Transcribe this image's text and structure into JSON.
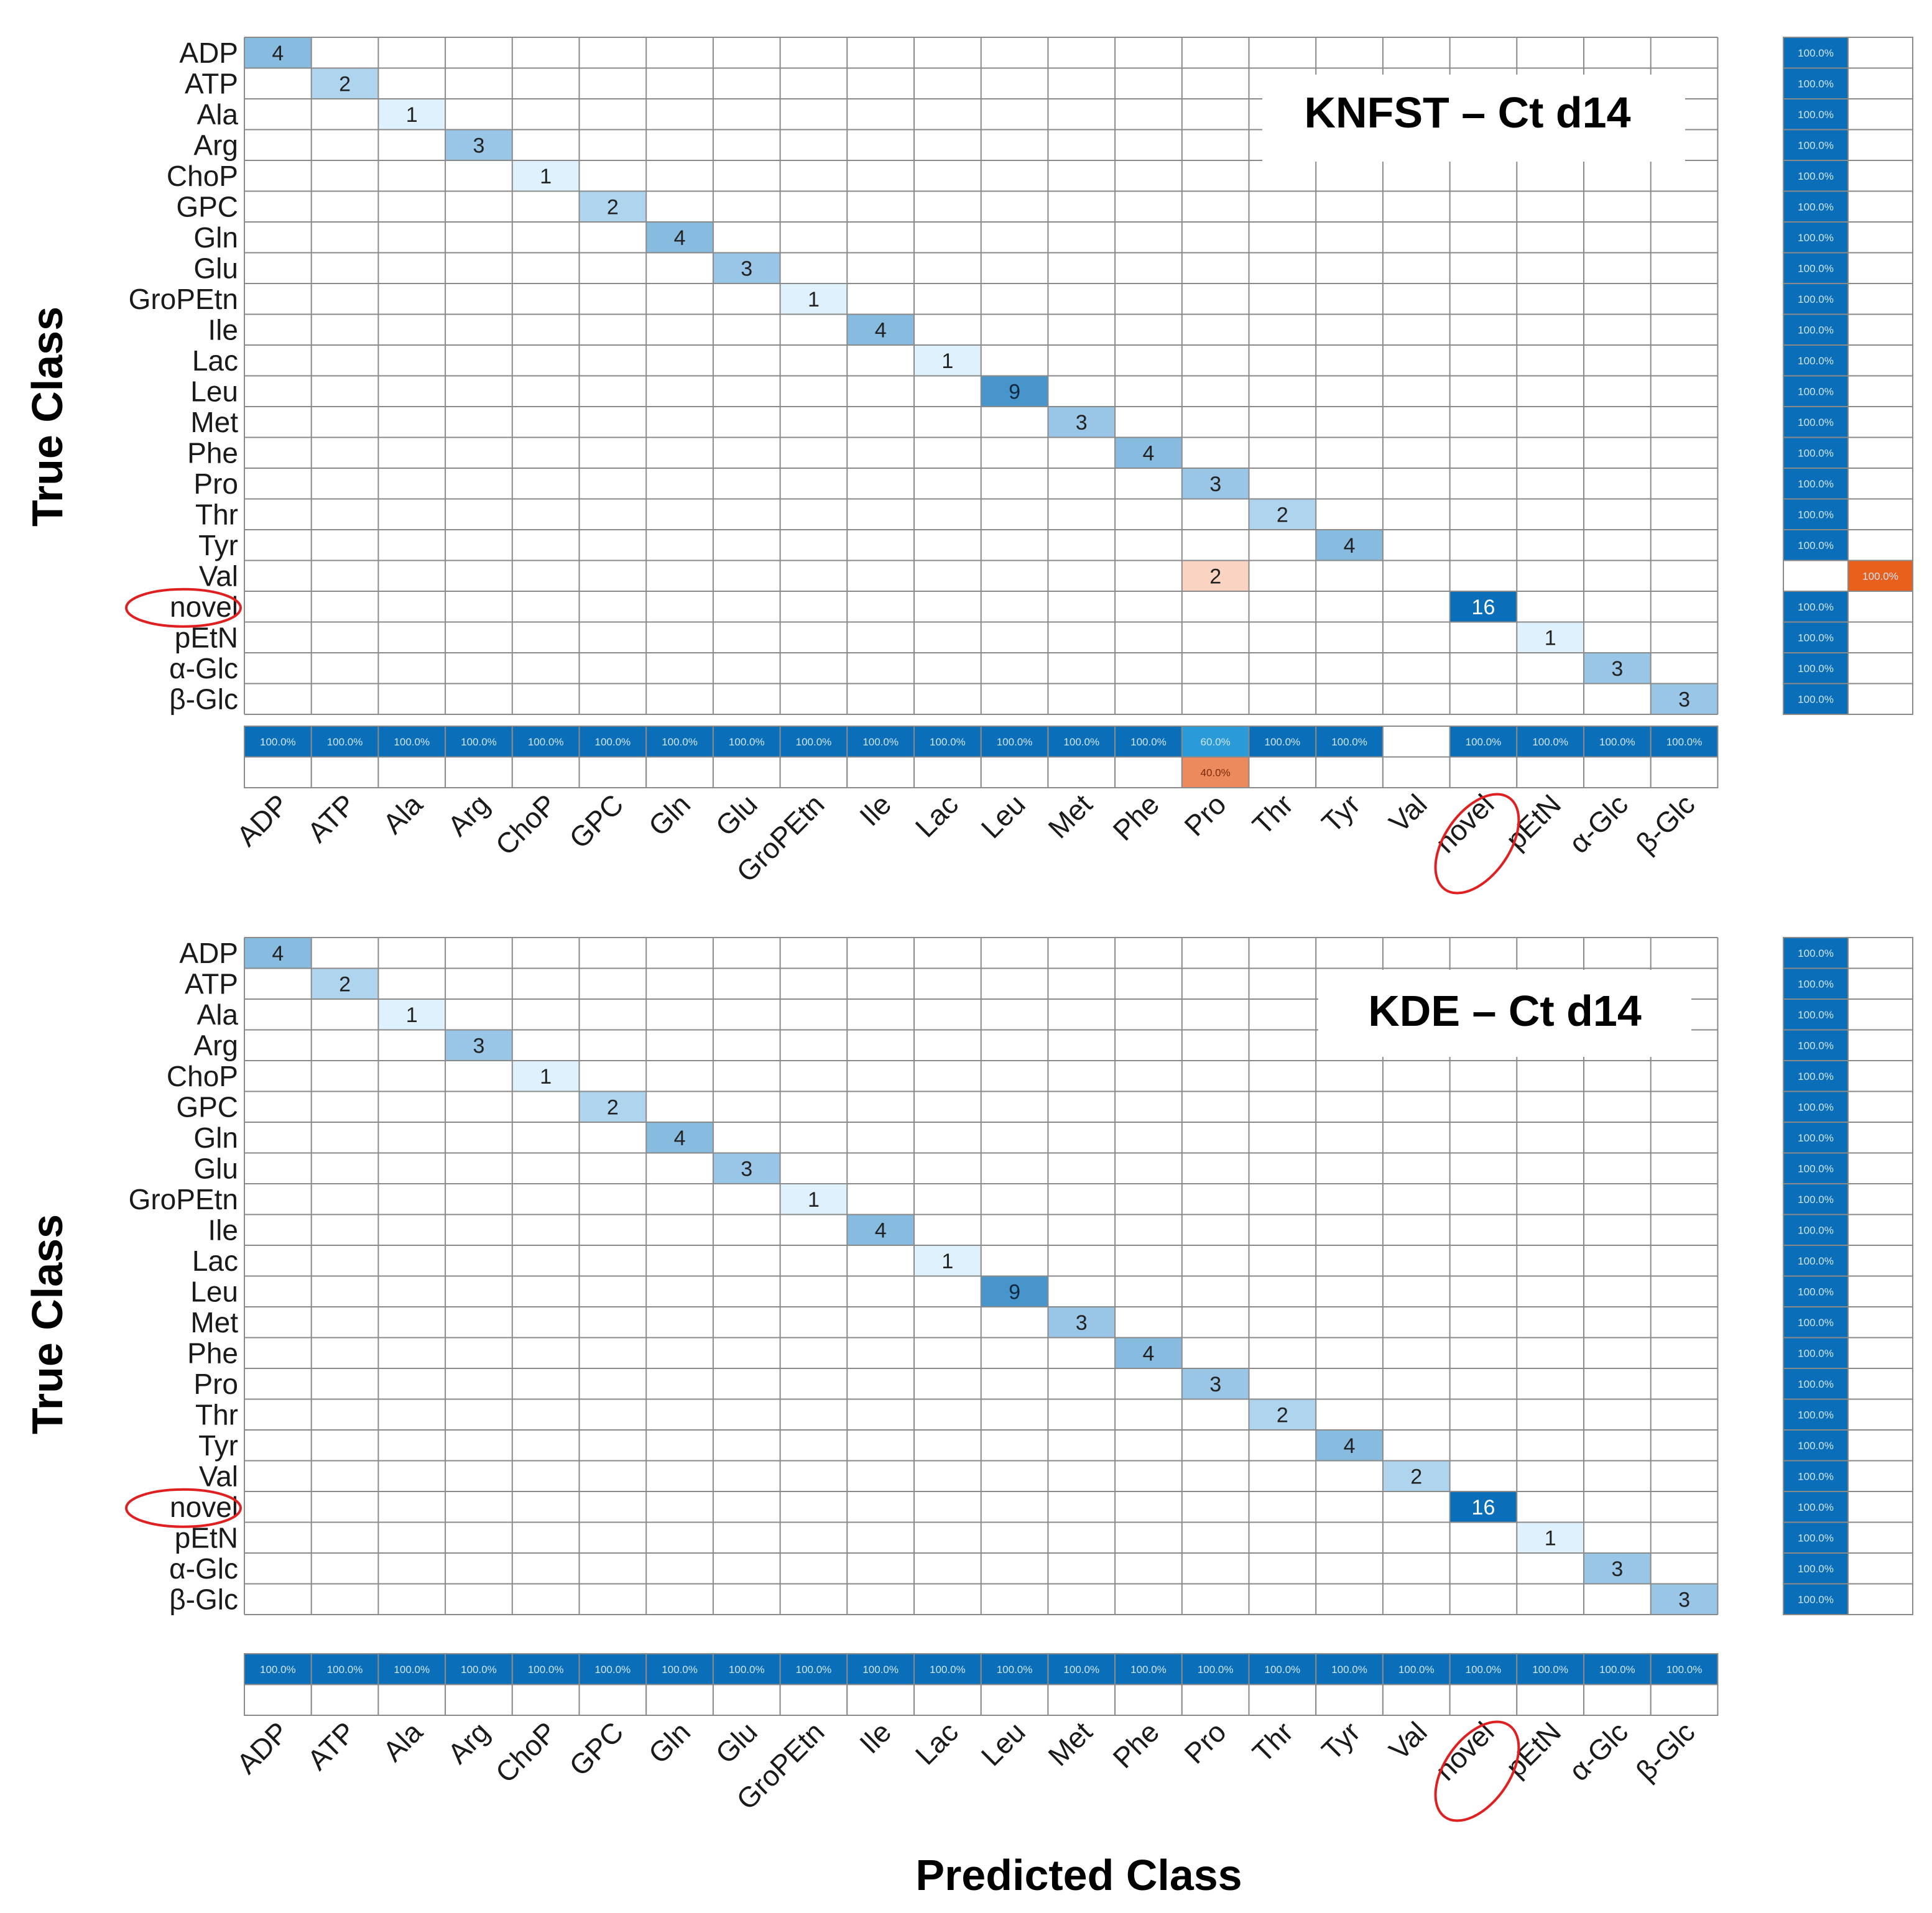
{
  "chart_data": [
    {
      "type": "heatmap",
      "title": "KNFST – Ct d14",
      "ylabel": "True Class",
      "xlabel": "",
      "classes": [
        "ADP",
        "ATP",
        "Ala",
        "Arg",
        "ChoP",
        "GPC",
        "Gln",
        "Glu",
        "GroPEtn",
        "Ile",
        "Lac",
        "Leu",
        "Met",
        "Phe",
        "Pro",
        "Thr",
        "Tyr",
        "Val",
        "novel",
        "pEtN",
        "α-Glc",
        "β-Glc"
      ],
      "highlighted_class": "novel",
      "cells": [
        {
          "true": 0,
          "pred": 0,
          "value": 4
        },
        {
          "true": 1,
          "pred": 1,
          "value": 2
        },
        {
          "true": 2,
          "pred": 2,
          "value": 1
        },
        {
          "true": 3,
          "pred": 3,
          "value": 3
        },
        {
          "true": 4,
          "pred": 4,
          "value": 1
        },
        {
          "true": 5,
          "pred": 5,
          "value": 2
        },
        {
          "true": 6,
          "pred": 6,
          "value": 4
        },
        {
          "true": 7,
          "pred": 7,
          "value": 3
        },
        {
          "true": 8,
          "pred": 8,
          "value": 1
        },
        {
          "true": 9,
          "pred": 9,
          "value": 4
        },
        {
          "true": 10,
          "pred": 10,
          "value": 1
        },
        {
          "true": 11,
          "pred": 11,
          "value": 9
        },
        {
          "true": 12,
          "pred": 12,
          "value": 3
        },
        {
          "true": 13,
          "pred": 13,
          "value": 4
        },
        {
          "true": 14,
          "pred": 14,
          "value": 3
        },
        {
          "true": 15,
          "pred": 15,
          "value": 2
        },
        {
          "true": 16,
          "pred": 16,
          "value": 4
        },
        {
          "true": 17,
          "pred": 14,
          "value": 2
        },
        {
          "true": 18,
          "pred": 18,
          "value": 16
        },
        {
          "true": 19,
          "pred": 19,
          "value": 1
        },
        {
          "true": 20,
          "pred": 20,
          "value": 3
        },
        {
          "true": 21,
          "pred": 21,
          "value": 3
        }
      ],
      "row_summary": [
        [
          100,
          0
        ],
        [
          100,
          0
        ],
        [
          100,
          0
        ],
        [
          100,
          0
        ],
        [
          100,
          0
        ],
        [
          100,
          0
        ],
        [
          100,
          0
        ],
        [
          100,
          0
        ],
        [
          100,
          0
        ],
        [
          100,
          0
        ],
        [
          100,
          0
        ],
        [
          100,
          0
        ],
        [
          100,
          0
        ],
        [
          100,
          0
        ],
        [
          100,
          0
        ],
        [
          100,
          0
        ],
        [
          100,
          0
        ],
        [
          0,
          100
        ],
        [
          100,
          0
        ],
        [
          100,
          0
        ],
        [
          100,
          0
        ],
        [
          100,
          0
        ]
      ],
      "col_summary": [
        [
          100,
          0
        ],
        [
          100,
          0
        ],
        [
          100,
          0
        ],
        [
          100,
          0
        ],
        [
          100,
          0
        ],
        [
          100,
          0
        ],
        [
          100,
          0
        ],
        [
          100,
          0
        ],
        [
          100,
          0
        ],
        [
          100,
          0
        ],
        [
          100,
          0
        ],
        [
          100,
          0
        ],
        [
          100,
          0
        ],
        [
          100,
          0
        ],
        [
          60,
          40
        ],
        [
          100,
          0
        ],
        [
          100,
          0
        ],
        [
          null,
          null
        ],
        [
          100,
          0
        ],
        [
          100,
          0
        ],
        [
          100,
          0
        ],
        [
          100,
          0
        ]
      ],
      "col_summary_rows": 2
    },
    {
      "type": "heatmap",
      "title": "KDE – Ct d14",
      "ylabel": "True Class",
      "xlabel": "Predicted Class",
      "classes": [
        "ADP",
        "ATP",
        "Ala",
        "Arg",
        "ChoP",
        "GPC",
        "Gln",
        "Glu",
        "GroPEtn",
        "Ile",
        "Lac",
        "Leu",
        "Met",
        "Phe",
        "Pro",
        "Thr",
        "Tyr",
        "Val",
        "novel",
        "pEtN",
        "α-Glc",
        "β-Glc"
      ],
      "highlighted_class": "novel",
      "cells": [
        {
          "true": 0,
          "pred": 0,
          "value": 4
        },
        {
          "true": 1,
          "pred": 1,
          "value": 2
        },
        {
          "true": 2,
          "pred": 2,
          "value": 1
        },
        {
          "true": 3,
          "pred": 3,
          "value": 3
        },
        {
          "true": 4,
          "pred": 4,
          "value": 1
        },
        {
          "true": 5,
          "pred": 5,
          "value": 2
        },
        {
          "true": 6,
          "pred": 6,
          "value": 4
        },
        {
          "true": 7,
          "pred": 7,
          "value": 3
        },
        {
          "true": 8,
          "pred": 8,
          "value": 1
        },
        {
          "true": 9,
          "pred": 9,
          "value": 4
        },
        {
          "true": 10,
          "pred": 10,
          "value": 1
        },
        {
          "true": 11,
          "pred": 11,
          "value": 9
        },
        {
          "true": 12,
          "pred": 12,
          "value": 3
        },
        {
          "true": 13,
          "pred": 13,
          "value": 4
        },
        {
          "true": 14,
          "pred": 14,
          "value": 3
        },
        {
          "true": 15,
          "pred": 15,
          "value": 2
        },
        {
          "true": 16,
          "pred": 16,
          "value": 4
        },
        {
          "true": 17,
          "pred": 17,
          "value": 2
        },
        {
          "true": 18,
          "pred": 18,
          "value": 16
        },
        {
          "true": 19,
          "pred": 19,
          "value": 1
        },
        {
          "true": 20,
          "pred": 20,
          "value": 3
        },
        {
          "true": 21,
          "pred": 21,
          "value": 3
        }
      ],
      "row_summary": [
        [
          100,
          0
        ],
        [
          100,
          0
        ],
        [
          100,
          0
        ],
        [
          100,
          0
        ],
        [
          100,
          0
        ],
        [
          100,
          0
        ],
        [
          100,
          0
        ],
        [
          100,
          0
        ],
        [
          100,
          0
        ],
        [
          100,
          0
        ],
        [
          100,
          0
        ],
        [
          100,
          0
        ],
        [
          100,
          0
        ],
        [
          100,
          0
        ],
        [
          100,
          0
        ],
        [
          100,
          0
        ],
        [
          100,
          0
        ],
        [
          100,
          0
        ],
        [
          100,
          0
        ],
        [
          100,
          0
        ],
        [
          100,
          0
        ],
        [
          100,
          0
        ]
      ],
      "col_summary": [
        [
          100,
          0
        ],
        [
          100,
          0
        ],
        [
          100,
          0
        ],
        [
          100,
          0
        ],
        [
          100,
          0
        ],
        [
          100,
          0
        ],
        [
          100,
          0
        ],
        [
          100,
          0
        ],
        [
          100,
          0
        ],
        [
          100,
          0
        ],
        [
          100,
          0
        ],
        [
          100,
          0
        ],
        [
          100,
          0
        ],
        [
          100,
          0
        ],
        [
          100,
          0
        ],
        [
          100,
          0
        ],
        [
          100,
          0
        ],
        [
          100,
          0
        ],
        [
          100,
          0
        ],
        [
          100,
          0
        ],
        [
          100,
          0
        ],
        [
          100,
          0
        ]
      ],
      "col_summary_rows": 2
    }
  ],
  "colors": {
    "grid": "#8a8a8a",
    "correct_max": "#0a6fb8",
    "correct_min": "#dff1fc",
    "error_light": "#fbd3c2",
    "error_dark": "#e8601c",
    "summary_blue": "#0a6fb8",
    "circle": "#e02020"
  }
}
